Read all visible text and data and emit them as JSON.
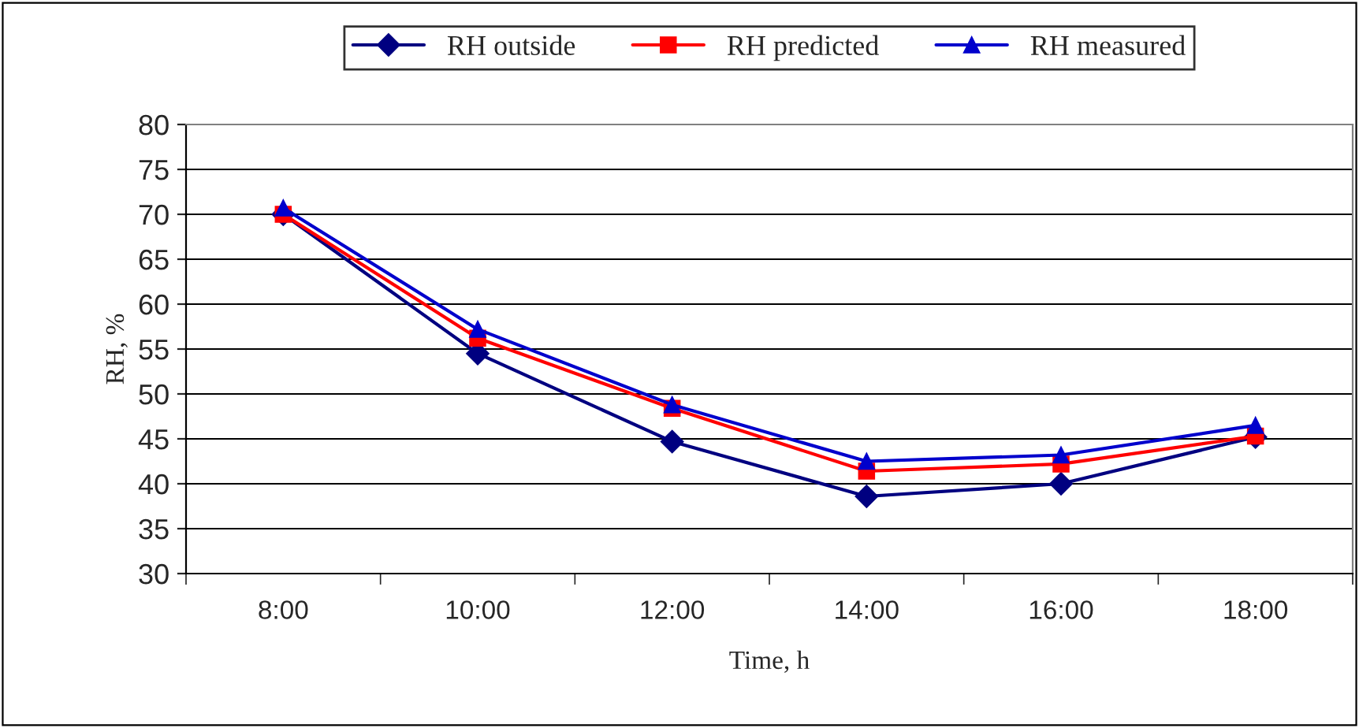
{
  "chart_data": {
    "type": "line",
    "xlabel": "Time, h",
    "ylabel": "RH, %",
    "categories": [
      "8:00",
      "10:00",
      "12:00",
      "14:00",
      "16:00",
      "18:00"
    ],
    "series": [
      {
        "name": "RH outside",
        "color": "#000080",
        "marker": "diamond",
        "values": [
          70.0,
          54.5,
          44.7,
          38.6,
          40.0,
          45.2
        ]
      },
      {
        "name": "RH predicted",
        "color": "#ff0000",
        "marker": "square",
        "values": [
          70.0,
          56.2,
          48.4,
          41.4,
          42.2,
          45.3
        ]
      },
      {
        "name": "RH measured",
        "color": "#0000cc",
        "marker": "triangle",
        "values": [
          70.7,
          57.2,
          48.8,
          42.5,
          43.2,
          46.5
        ]
      }
    ],
    "ylim": [
      30,
      80
    ],
    "yticks": [
      30,
      35,
      40,
      45,
      50,
      55,
      60,
      65,
      70,
      75,
      80
    ],
    "grid": "y",
    "legend": "top",
    "line_style": "solid"
  }
}
